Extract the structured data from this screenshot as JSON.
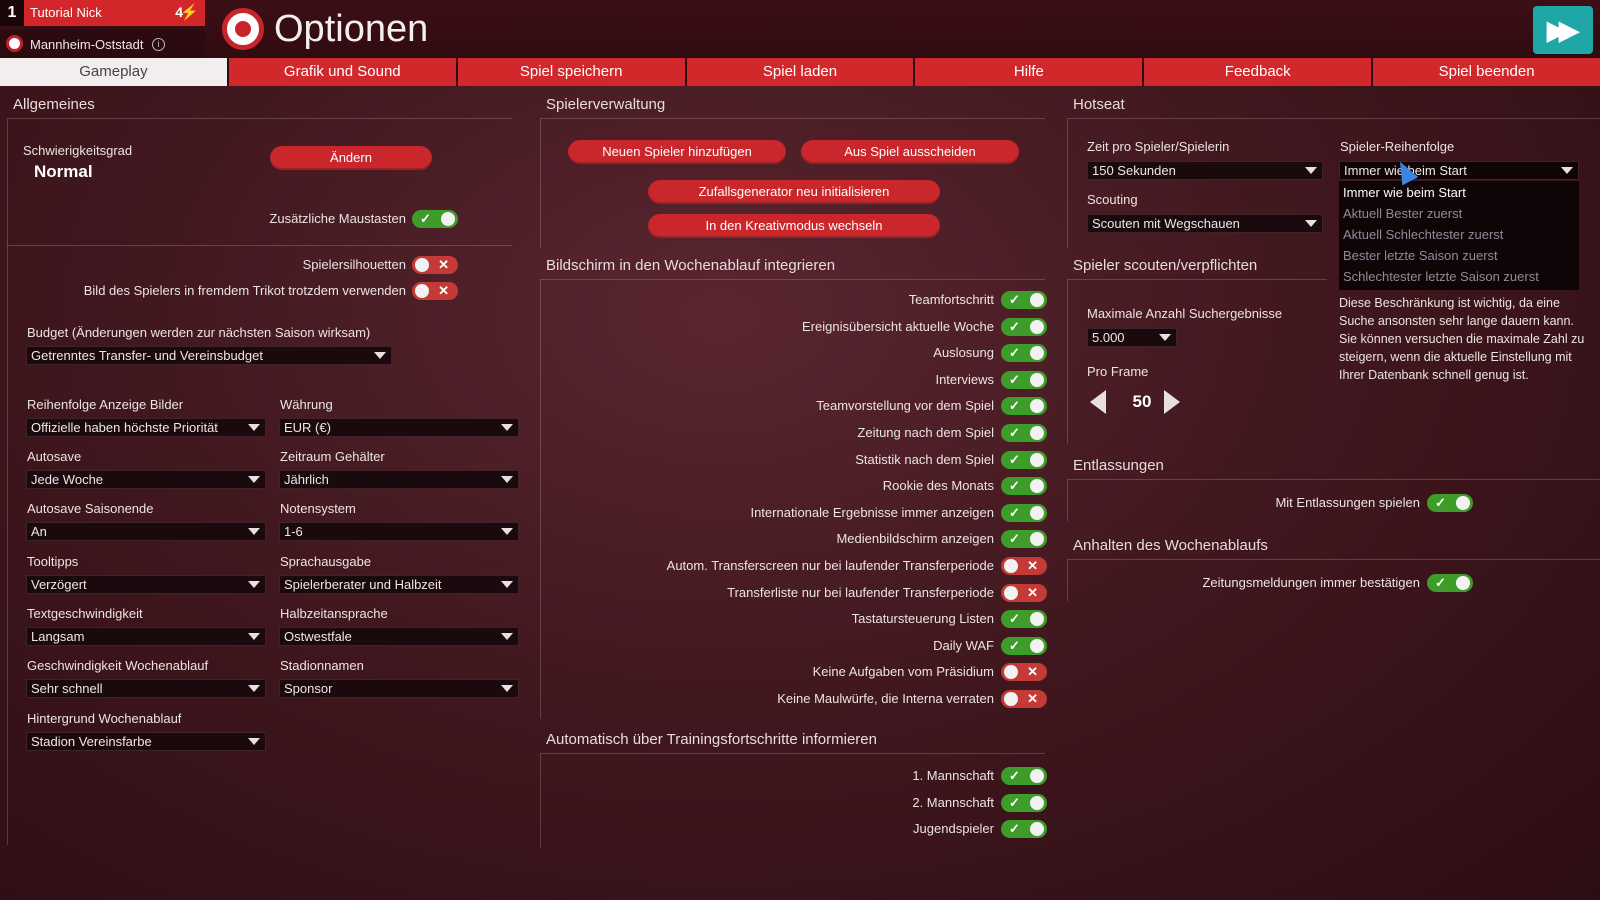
{
  "header": {
    "rank": "1",
    "nick": "Tutorial Nick",
    "points": "4",
    "club": "Mannheim-Oststadt",
    "title": "Optionen"
  },
  "tabs": [
    "Gameplay",
    "Grafik und Sound",
    "Spiel speichern",
    "Spiel laden",
    "Hilfe",
    "Feedback",
    "Spiel beenden"
  ],
  "allgemeines": {
    "title": "Allgemeines",
    "difficulty_label": "Schwierigkeitsgrad",
    "difficulty_value": "Normal",
    "change_button": "Ändern",
    "extra_mouse_label": "Zusätzliche Maustasten",
    "silhouettes_label": "Spielersilhouetten",
    "foreign_shirt_label": "Bild des Spielers in fremdem Trikot trotzdem verwenden",
    "budget_label": "Budget (Änderungen werden zur nächsten Saison wirksam)",
    "budget_value": "Getrenntes Transfer- und Vereinsbudget",
    "fields": [
      {
        "label": "Reihenfolge Anzeige Bilder",
        "value": "Offizielle haben höchste Priorität"
      },
      {
        "label": "Währung",
        "value": "EUR (€)"
      },
      {
        "label": "Autosave",
        "value": "Jede Woche"
      },
      {
        "label": "Zeitraum Gehälter",
        "value": "Jährlich"
      },
      {
        "label": "Autosave Saisonende",
        "value": "An"
      },
      {
        "label": "Notensystem",
        "value": "1-6"
      },
      {
        "label": "Tooltipps",
        "value": "Verzögert"
      },
      {
        "label": "Sprachausgabe",
        "value": "Spielerberater und Halbzeit"
      },
      {
        "label": "Textgeschwindigkeit",
        "value": "Langsam"
      },
      {
        "label": "Halbzeitansprache",
        "value": "Ostwestfale"
      },
      {
        "label": "Geschwindigkeit Wochenablauf",
        "value": "Sehr schnell"
      },
      {
        "label": "Stadionnamen",
        "value": "Sponsor"
      },
      {
        "label": "Hintergrund Wochenablauf",
        "value": "Stadion Vereinsfarbe"
      }
    ]
  },
  "spielerverwaltung": {
    "title": "Spielerverwaltung",
    "buttons": [
      "Neuen Spieler hinzufügen",
      "Aus Spiel ausscheiden",
      "Zufallsgenerator neu initialisieren",
      "In den Kreativmodus wechseln"
    ]
  },
  "wochenablauf": {
    "title": "Bildschirm in den Wochenablauf integrieren",
    "items": [
      {
        "label": "Teamfortschritt",
        "on": true
      },
      {
        "label": "Ereignisübersicht aktuelle Woche",
        "on": true
      },
      {
        "label": "Auslosung",
        "on": true
      },
      {
        "label": "Interviews",
        "on": true
      },
      {
        "label": "Teamvorstellung vor dem Spiel",
        "on": true
      },
      {
        "label": "Zeitung nach dem Spiel",
        "on": true
      },
      {
        "label": "Statistik nach dem Spiel",
        "on": true
      },
      {
        "label": "Rookie des Monats",
        "on": true
      },
      {
        "label": "Internationale Ergebnisse immer anzeigen",
        "on": true
      },
      {
        "label": "Medienbildschirm anzeigen",
        "on": true
      },
      {
        "label": "Autom. Transferscreen nur bei laufender Transferperiode",
        "on": false
      },
      {
        "label": "Transferliste nur bei laufender Transferperiode",
        "on": false
      },
      {
        "label": "Tastatursteuerung Listen",
        "on": true
      },
      {
        "label": "Daily WAF",
        "on": true
      },
      {
        "label": "Keine Aufgaben vom Präsidium",
        "on": false
      },
      {
        "label": "Keine Maulwürfe, die Interna verraten",
        "on": false
      }
    ]
  },
  "training": {
    "title": "Automatisch über Trainingsfortschritte informieren",
    "items": [
      {
        "label": "1. Mannschaft",
        "on": true
      },
      {
        "label": "2. Mannschaft",
        "on": true
      },
      {
        "label": "Jugendspieler",
        "on": true
      }
    ]
  },
  "hotseat": {
    "title": "Hotseat",
    "time_label": "Zeit pro Spieler/Spielerin",
    "time_value": "150 Sekunden",
    "order_label": "Spieler-Reihenfolge",
    "order_value": "Immer wie beim Start",
    "order_options": [
      "Immer wie beim Start",
      "Aktuell Bester zuerst",
      "Aktuell Schlechtester zuerst",
      "Bester letzte Saison zuerst",
      "Schlechtester letzte Saison zuerst"
    ],
    "scouting_label": "Scouting",
    "scouting_value": "Scouten mit Wegschauen"
  },
  "scouting": {
    "title": "Spieler scouten/verpflichten",
    "max_label": "Maximale Anzahl Suchergebnisse",
    "max_value": "5.000",
    "frame_label": "Pro Frame",
    "frame_value": "50",
    "hint": "Diese Beschränkung ist wichtig, da eine Suche ansonsten sehr lange dauern kann. Sie können versuchen die maximale Zahl zu steigern, wenn die aktuelle Einstellung mit Ihrer Datenbank schnell genug ist."
  },
  "entlassungen": {
    "title": "Entlassungen",
    "toggle_label": "Mit Entlassungen spielen"
  },
  "anhalten": {
    "title": "Anhalten des Wochenablaufs",
    "toggle_label": "Zeitungsmeldungen immer bestätigen"
  },
  "colors": {
    "accent_red": "#d0282b",
    "toggle_on": "#3e9d2a",
    "toggle_off": "#c33a36",
    "fast_forward": "#1fa7a7"
  }
}
